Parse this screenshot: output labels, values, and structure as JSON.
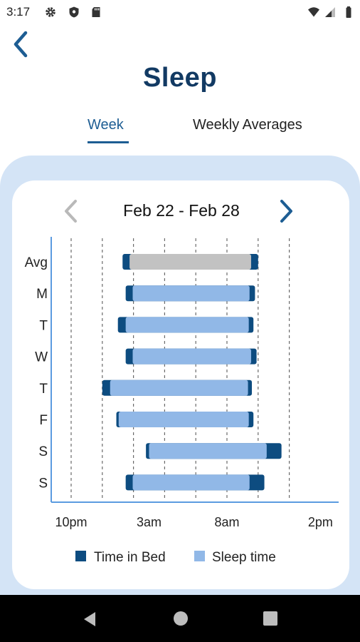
{
  "status_bar": {
    "time": "3:17",
    "left_icons": [
      "gear-icon",
      "shield-icon",
      "sd-card-icon"
    ],
    "right_icons": [
      "wifi-icon",
      "cellular-signal-icon",
      "battery-icon"
    ]
  },
  "header": {
    "back_icon": "chevron-left-icon",
    "title": "Sleep"
  },
  "tabs": [
    {
      "label": "Week",
      "selected": true
    },
    {
      "label": "Weekly Averages",
      "selected": false
    }
  ],
  "date_nav": {
    "prev_icon": "chevron-left-icon",
    "range_label": "Feb 22 - Feb 28",
    "next_icon": "chevron-right-icon"
  },
  "chart_data": {
    "type": "bar",
    "orientation": "horizontal-range",
    "title": "",
    "xlabel": "",
    "ylabel": "",
    "x_unit": "hours after 10pm",
    "xlim": [
      0,
      16
    ],
    "x_ticks": [
      {
        "value": 0,
        "label": "10pm"
      },
      {
        "value": 5,
        "label": "3am"
      },
      {
        "value": 10,
        "label": "8am"
      },
      {
        "value": 16,
        "label": "2pm"
      }
    ],
    "gridlines_x": [
      0,
      2,
      4,
      6,
      8,
      10,
      12,
      14
    ],
    "categories": [
      "Avg",
      "M",
      "T",
      "W",
      "T",
      "F",
      "S",
      "S"
    ],
    "series": [
      {
        "name": "Time in Bed",
        "color": "#0d4c80",
        "starts": [
          3.3,
          3.5,
          3.0,
          3.5,
          2.0,
          2.9,
          4.8,
          3.5
        ],
        "ends": [
          12.0,
          11.8,
          11.7,
          11.9,
          11.6,
          11.7,
          13.5,
          12.4
        ]
      },
      {
        "name": "Sleep time",
        "color": "#91b8e7",
        "starts": [
          3.75,
          3.95,
          3.5,
          3.95,
          2.5,
          3.05,
          5.0,
          3.95
        ],
        "ends": [
          11.55,
          11.45,
          11.4,
          11.55,
          11.35,
          11.4,
          12.55,
          11.45
        ]
      }
    ],
    "avg_sleep_color": "#c2c2c2",
    "legend": [
      {
        "label": "Time in Bed",
        "color": "#0d4c80"
      },
      {
        "label": "Sleep time",
        "color": "#91b8e7"
      }
    ],
    "legend_position": "bottom"
  },
  "bottom_nav": {
    "icons": [
      "back-triangle-icon",
      "home-circle-icon",
      "recents-square-icon"
    ]
  }
}
